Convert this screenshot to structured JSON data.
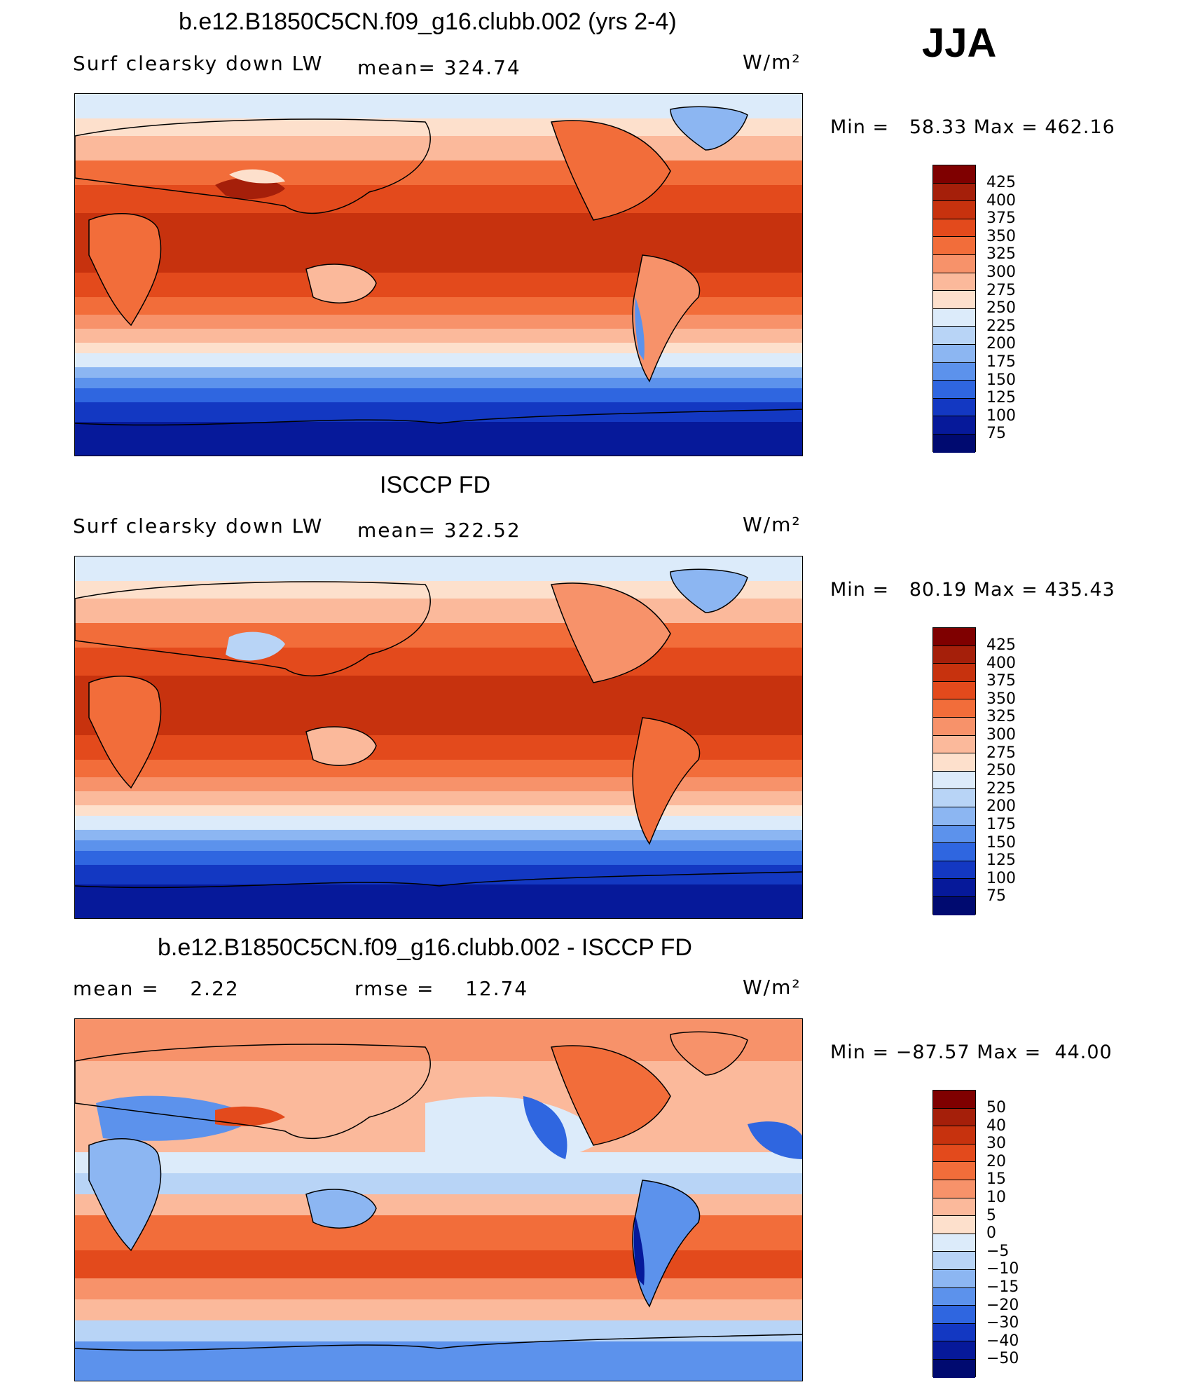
{
  "season": "JJA",
  "units": "W/m²",
  "panels": [
    {
      "title": "b.e12.B1850C5CN.f09_g16.clubb.002 (yrs 2-4)",
      "subtitle_left": "Surf clearsky down LW",
      "subtitle_mid": "mean= 324.74",
      "units": "W/m²",
      "min_label": "Min =",
      "min_value": "58.33",
      "max_label": "Max =",
      "max_value": "462.16",
      "levels": [
        "425",
        "400",
        "375",
        "350",
        "325",
        "300",
        "275",
        "250",
        "225",
        "200",
        "175",
        "150",
        "125",
        "100",
        "75"
      ]
    },
    {
      "title": "ISCCP FD",
      "subtitle_left": "Surf clearsky down LW",
      "subtitle_mid": "mean= 322.52",
      "units": "W/m²",
      "min_label": "Min =",
      "min_value": "80.19",
      "max_label": "Max =",
      "max_value": "435.43",
      "levels": [
        "425",
        "400",
        "375",
        "350",
        "325",
        "300",
        "275",
        "250",
        "225",
        "200",
        "175",
        "150",
        "125",
        "100",
        "75"
      ]
    },
    {
      "title": "b.e12.B1850C5CN.f09_g16.clubb.002 - ISCCP FD",
      "subtitle_left": "mean =    2.22",
      "subtitle_mid": "rmse =    12.74",
      "units": "W/m²",
      "min_label": "Min =",
      "min_value": "−87.57",
      "max_label": "Max =",
      "max_value": "44.00",
      "levels": [
        "50",
        "40",
        "30",
        "20",
        "15",
        "10",
        "5",
        "0",
        "−5",
        "−10",
        "−15",
        "−20",
        "−30",
        "−40",
        "−50"
      ]
    }
  ],
  "colors": {
    "abs_scale": [
      "#7f0000",
      "#a51f0a",
      "#c7320e",
      "#e34a1c",
      "#f26d3a",
      "#f7926a",
      "#fbb99b",
      "#fde0cc",
      "#dcebfa",
      "#b8d4f6",
      "#8cb6f2",
      "#5c92ec",
      "#2f66e0",
      "#1338c2",
      "#06199a",
      "#000a70"
    ],
    "diff_scale": [
      "#7f0000",
      "#a51f0a",
      "#c7320e",
      "#e34a1c",
      "#f26d3a",
      "#f7926a",
      "#fbb99b",
      "#fde0cc",
      "#dcebfa",
      "#b8d4f6",
      "#8cb6f2",
      "#5c92ec",
      "#2f66e0",
      "#1338c2",
      "#06199a",
      "#000a70"
    ]
  }
}
